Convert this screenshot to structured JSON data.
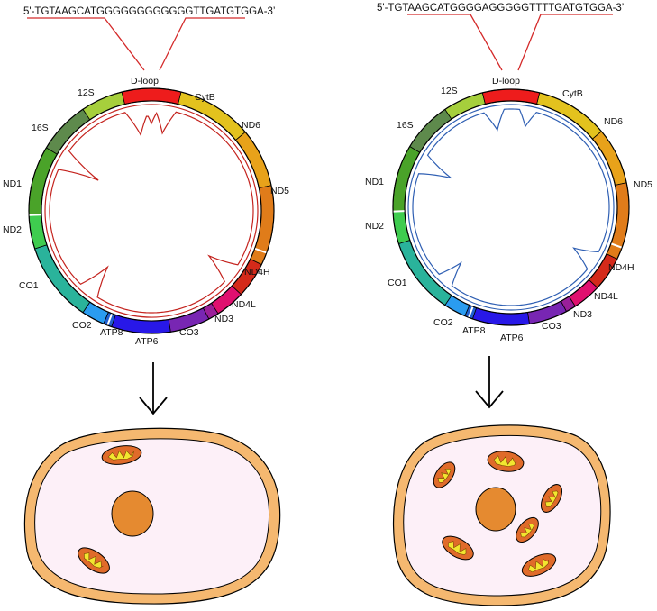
{
  "sequences": {
    "left": "5'-TGTAAGCATGGGGGGGGGGGGTTGATGTGGA-3’",
    "right": "5'-TGTAAGCATGGGGAGGGGGTTTTGATGTGGA-3’"
  },
  "genome": {
    "dloop_label": "D-loop",
    "segments": [
      {
        "name": "12S",
        "color": "#a6cf3c"
      },
      {
        "name": "16S",
        "color": "#5e8a4c"
      },
      {
        "name": "ND1",
        "color": "#4aa329"
      },
      {
        "name": "ND2",
        "color": "#3fcc4f"
      },
      {
        "name": "CO1",
        "color": "#2ab39b"
      },
      {
        "name": "CO2",
        "color": "#2a9cf0"
      },
      {
        "name": "ATP8",
        "color": "#1f5fd0"
      },
      {
        "name": "ATP6",
        "color": "#2818e8"
      },
      {
        "name": "CO3",
        "color": "#7826b3"
      },
      {
        "name": "ND3",
        "color": "#9a1f9a"
      },
      {
        "name": "ND4L",
        "color": "#e0106f"
      },
      {
        "name": "ND4H",
        "color": "#d42a1a"
      },
      {
        "name": "ND5",
        "color": "#e07c1a"
      },
      {
        "name": "ND6",
        "color": "#e8a21a"
      },
      {
        "name": "CytB",
        "color": "#e3c21e"
      },
      {
        "name": "D-loop",
        "color": "#ee1c1c"
      }
    ]
  },
  "colors": {
    "left_inner": "#c4231e",
    "right_inner": "#2f5fb3",
    "cell_outer": "#f5b870",
    "cytoplasm": "#fdf0f8",
    "nucleus": "#e58a30",
    "mito_outer": "#e06b2a",
    "mito_inner": "#f2e630"
  }
}
